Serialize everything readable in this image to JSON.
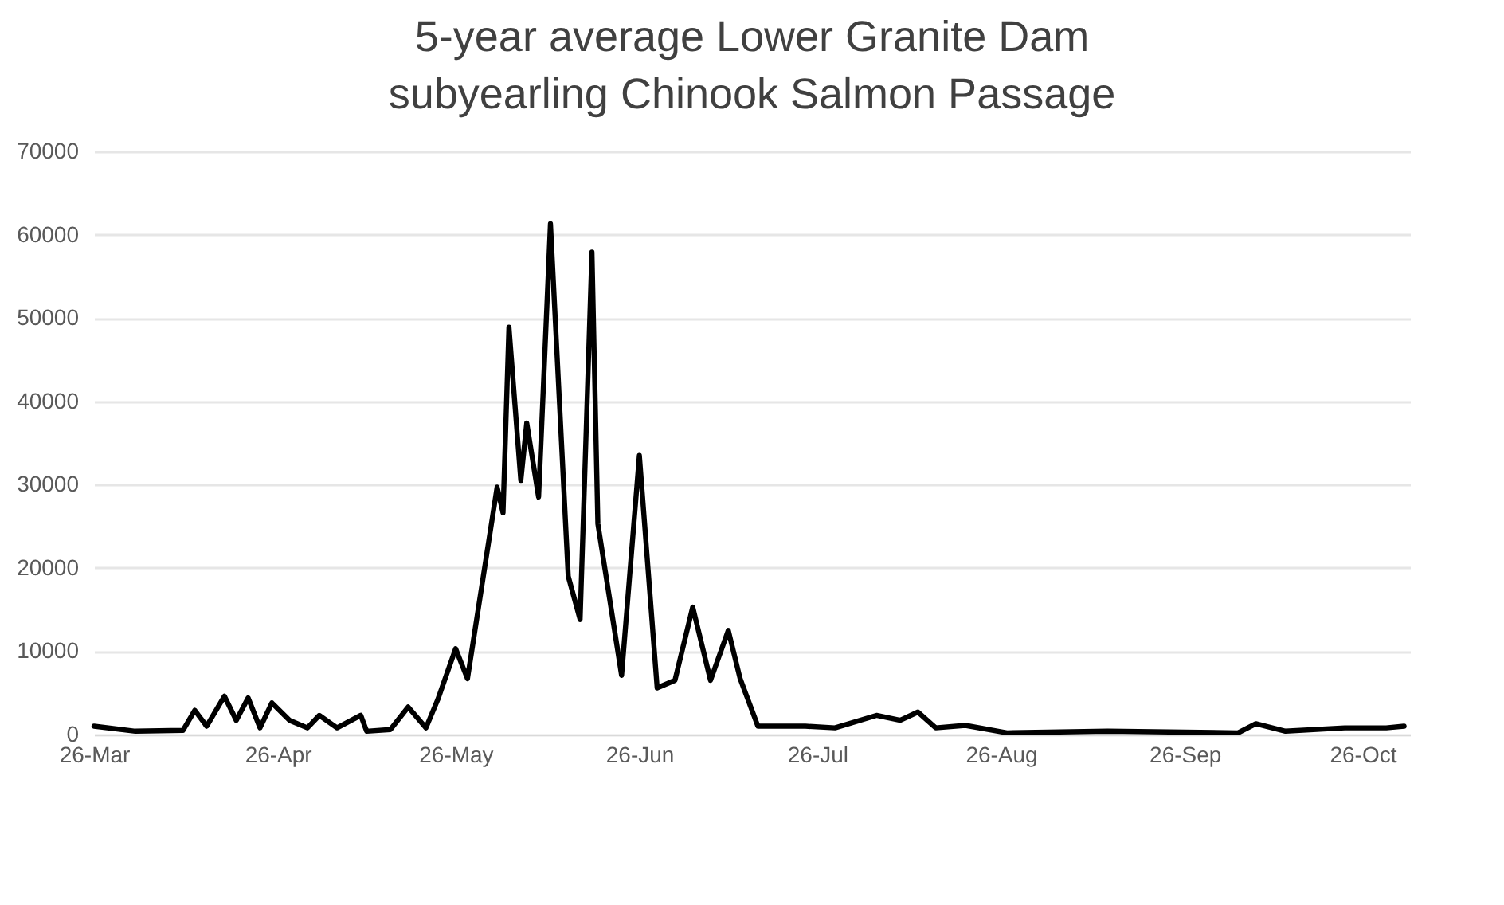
{
  "chart_data": {
    "type": "line",
    "title": "5-year average Lower Granite Dam subyearling Chinook Salmon Passage",
    "x": [
      "--03-26",
      "--04-02",
      "--04-10",
      "--04-12",
      "--04-14",
      "--04-17",
      "--04-19",
      "--04-21",
      "--04-23",
      "--04-25",
      "--04-28",
      "--05-01",
      "--05-03",
      "--05-06",
      "--05-10",
      "--05-11",
      "--05-15",
      "--05-18",
      "--05-21",
      "--05-23",
      "--05-26",
      "--05-28",
      "--06-02",
      "--06-03",
      "--06-04",
      "--06-06",
      "--06-07",
      "--06-09",
      "--06-11",
      "--06-14",
      "--06-16",
      "--06-18",
      "--06-19",
      "--06-23",
      "--06-26",
      "--06-29",
      "--07-02",
      "--07-05",
      "--07-08",
      "--07-11",
      "--07-13",
      "--07-16",
      "--07-24",
      "--07-29",
      "--08-05",
      "--08-09",
      "--08-12",
      "--08-15",
      "--08-20",
      "--08-27",
      "--09-13",
      "--10-05",
      "--10-08",
      "--10-13",
      "--10-23",
      "--10-30",
      "--11-02"
    ],
    "series": [
      {
        "color": "#000000",
        "values": [
          1000,
          400,
          500,
          2900,
          1000,
          4600,
          1700,
          4400,
          800,
          3800,
          1700,
          800,
          2300,
          800,
          2300,
          400,
          600,
          3300,
          800,
          4200,
          10300,
          6700,
          29700,
          26600,
          48900,
          30500,
          37400,
          28500,
          61300,
          19000,
          13800,
          57900,
          25300,
          7100,
          33500,
          5600,
          6500,
          15300,
          6500,
          12500,
          6700,
          1000,
          1000,
          800,
          2300,
          1700,
          2700,
          800,
          1100,
          200,
          400,
          200,
          1300,
          400,
          800,
          800,
          1000
        ]
      }
    ],
    "xlim": [
      "--03-26",
      "--11-03"
    ],
    "xticks": [
      {
        "value": "--03-26",
        "label": "26-Mar"
      },
      {
        "value": "--04-26",
        "label": "26-Apr"
      },
      {
        "value": "--05-26",
        "label": "26-May"
      },
      {
        "value": "--06-26",
        "label": "26-Jun"
      },
      {
        "value": "--07-26",
        "label": "26-Jul"
      },
      {
        "value": "--08-26",
        "label": "26-Aug"
      },
      {
        "value": "--09-26",
        "label": "26-Sep"
      },
      {
        "value": "--10-26",
        "label": "26-Oct"
      }
    ],
    "ylim": [
      0,
      70000
    ],
    "yticks": [
      0,
      10000,
      20000,
      30000,
      40000,
      50000,
      60000,
      70000
    ],
    "grid": "y",
    "legend": false,
    "marker": "none",
    "line_style": "solid"
  }
}
